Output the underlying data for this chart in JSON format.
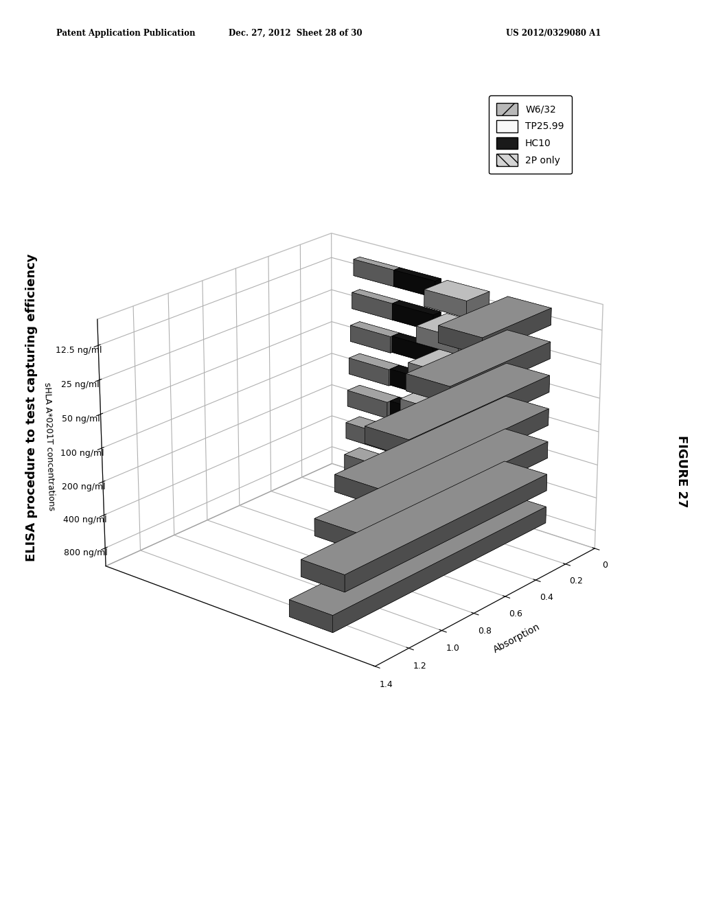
{
  "title": "ELISA procedure to test capturing efficiency",
  "figure_label": "FIGURE 27",
  "ylabel": "Absorption",
  "x_axis_label": "sHLA A*0201T concentrations",
  "header_left": "Patent Application Publication",
  "header_mid": "Dec. 27, 2012  Sheet 28 of 30",
  "header_right": "US 2012/0329080 A1",
  "categories": [
    "800 ng/ml",
    "400 ng/ml",
    "200 ng/ml",
    "100 ng/ml",
    "50 ng/ml",
    "25 ng/ml",
    "12.5 ng/ml"
  ],
  "series_names": [
    "W6/32",
    "TP25.99",
    "HC10",
    "2P only"
  ],
  "W6_32": [
    1.35,
    1.28,
    1.2,
    1.08,
    0.9,
    0.65,
    0.45
  ],
  "TP25_99": [
    0.42,
    0.4,
    0.36,
    0.3,
    0.25,
    0.2,
    0.15
  ],
  "HC10": [
    0.06,
    0.06,
    0.06,
    0.06,
    0.05,
    0.05,
    0.04
  ],
  "P2only": [
    0.1,
    0.09,
    0.08,
    0.07,
    0.06,
    0.05,
    0.04
  ],
  "ylim": [
    0,
    1.4
  ],
  "yticks": [
    0,
    0.2,
    0.4,
    0.6,
    0.8,
    1.0,
    1.2,
    1.4
  ],
  "background_color": "#ffffff",
  "elev": 22,
  "azim": 40
}
